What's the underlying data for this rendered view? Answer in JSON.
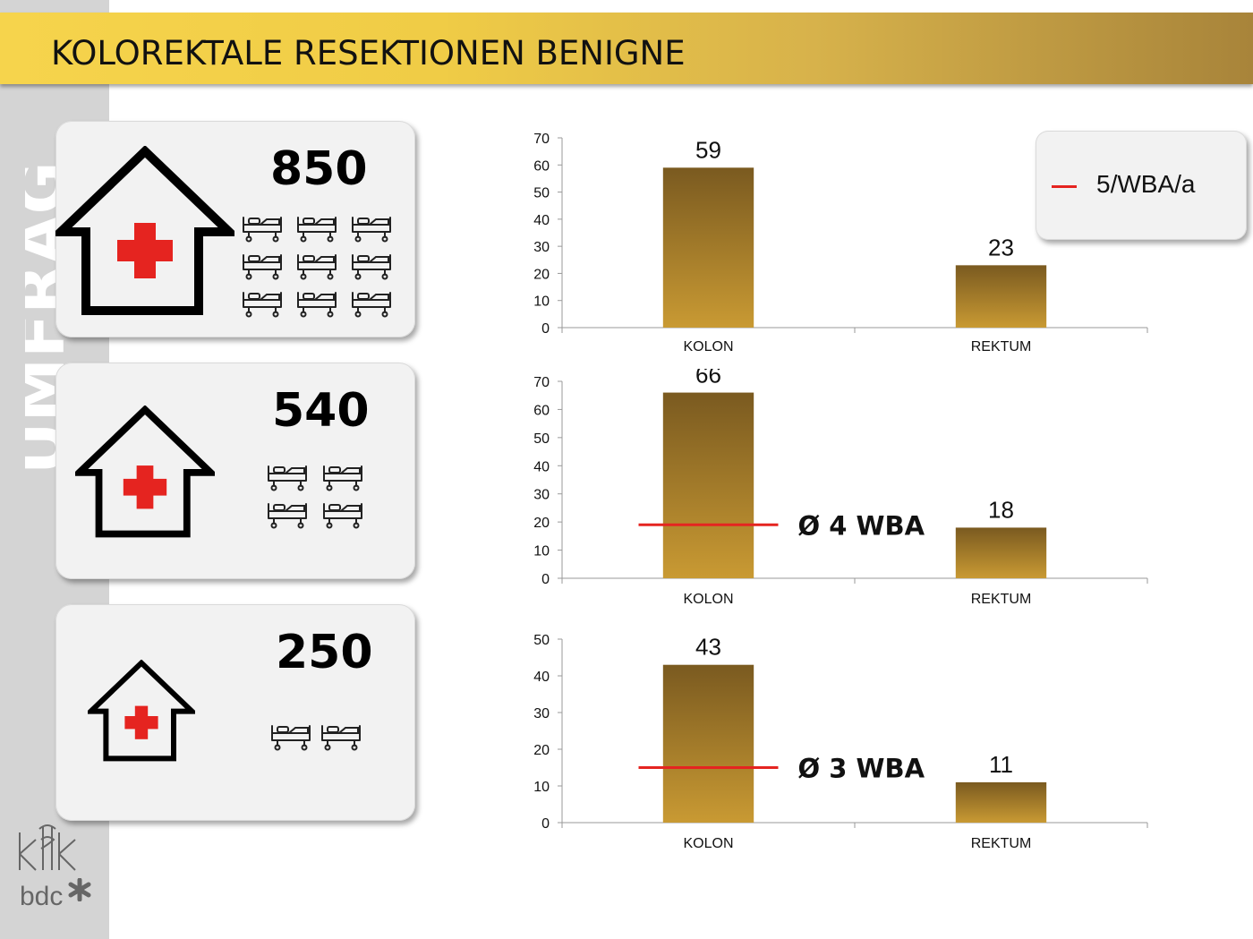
{
  "title": "KOLOREKTALE RESEKTIONEN BENIGNE",
  "watermark": "UMFRAGE",
  "colors": {
    "bar_top": "#7a5a20",
    "bar_bottom": "#c99a33",
    "marker": "#e52420",
    "header_left": "#f6d44c",
    "header_right": "#a8843a"
  },
  "icons": {
    "house": "hospital-house-icon",
    "bed": "hospital-bed-icon"
  },
  "cards": [
    {
      "value": "850",
      "beds": 9
    },
    {
      "value": "540",
      "beds": 4
    },
    {
      "value": "250",
      "beds": 2
    }
  ],
  "legend": {
    "label": "5/WBA/a"
  },
  "logos": {
    "bdc": "bdc"
  },
  "chart_data": [
    {
      "type": "bar",
      "categories": [
        "KOLON",
        "REKTUM"
      ],
      "values": [
        59,
        23
      ],
      "ylim": [
        0,
        70
      ],
      "yticks": [
        0,
        10,
        20,
        30,
        40,
        50,
        60,
        70
      ],
      "reference": null,
      "reference_label": "",
      "grid": false
    },
    {
      "type": "bar",
      "categories": [
        "KOLON",
        "REKTUM"
      ],
      "values": [
        66,
        18
      ],
      "ylim": [
        0,
        70
      ],
      "yticks": [
        0,
        10,
        20,
        30,
        40,
        50,
        60,
        70
      ],
      "reference": 19,
      "reference_label": "Ø 4 WBA",
      "grid": false
    },
    {
      "type": "bar",
      "categories": [
        "KOLON",
        "REKTUM"
      ],
      "values": [
        43,
        11
      ],
      "ylim": [
        0,
        50
      ],
      "yticks": [
        0,
        10,
        20,
        30,
        40,
        50
      ],
      "reference": 15,
      "reference_label": "Ø 3 WBA",
      "grid": false
    }
  ]
}
